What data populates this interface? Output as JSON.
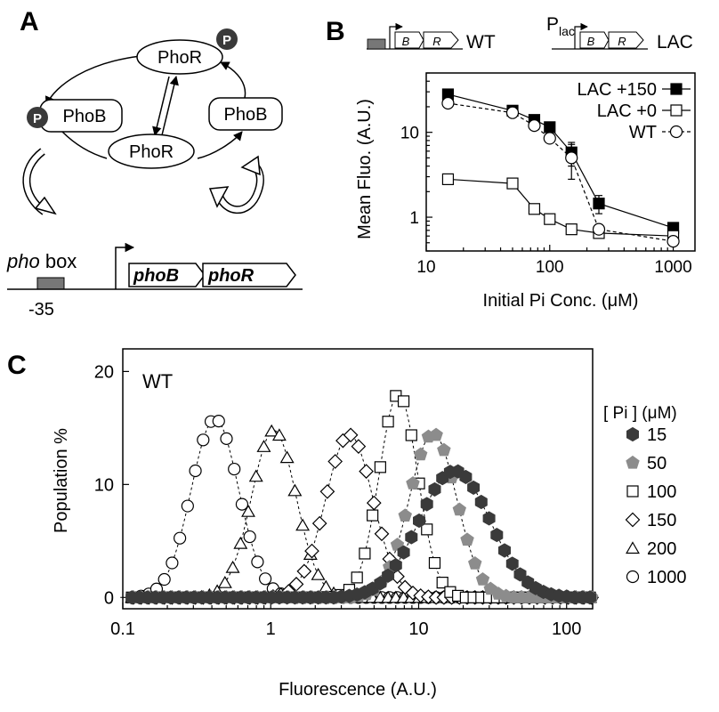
{
  "panel_a": {
    "letter": "A",
    "phor_label": "PhoR",
    "phob_label": "PhoB",
    "p_label": "P",
    "pho_italic": "pho",
    "box_label": " box",
    "minus35": "-35",
    "gene_b": "phoB",
    "gene_r": "phoR"
  },
  "panel_b_header": {
    "letter": "B",
    "b_label": "B",
    "r_label": "R",
    "wt_label": "WT",
    "lac_label": "LAC",
    "plac_p": "P",
    "plac_sub": "lac"
  },
  "panel_c_header": {
    "letter": "C",
    "inset_label": "WT",
    "legend_title": "[ Pi ] (μM)"
  },
  "colors": {
    "dark_hex": "#3a3a3a",
    "gray_pent": "#8c8c8c",
    "gene_box": "#777777"
  },
  "chart_data": [
    {
      "type": "line",
      "panel": "B",
      "xlabel": "Initial Pi Conc. (μM)",
      "ylabel": "Mean Fluo. (A.U.)",
      "xscale": "log",
      "yscale": "log",
      "xlim": [
        10,
        1500
      ],
      "ylim": [
        0.4,
        50
      ],
      "xticks": [
        10,
        100,
        1000
      ],
      "xtick_labels": [
        "10",
        "100",
        "1000"
      ],
      "yticks": [
        1,
        10
      ],
      "ytick_labels": [
        "1",
        "10"
      ],
      "legend_position": "top-right",
      "series": [
        {
          "name": "LAC +150",
          "marker": "filled-square",
          "line": "solid",
          "x": [
            15,
            50,
            75,
            100,
            150,
            250,
            1000
          ],
          "y": [
            28,
            18,
            14,
            11.5,
            5.8,
            1.45,
            0.75
          ],
          "err": [
            0,
            0,
            0,
            0,
            1.8,
            0.35,
            0.08
          ]
        },
        {
          "name": "LAC +0",
          "marker": "open-square",
          "line": "solid",
          "x": [
            15,
            50,
            75,
            100,
            150,
            250,
            1000
          ],
          "y": [
            2.8,
            2.5,
            1.25,
            0.95,
            0.72,
            0.65,
            0.6
          ],
          "err": [
            0,
            0,
            0,
            0,
            0,
            0,
            0
          ]
        },
        {
          "name": "WT",
          "marker": "open-circle",
          "line": "dashed",
          "x": [
            15,
            50,
            75,
            100,
            150,
            250,
            1000
          ],
          "y": [
            22,
            17,
            12,
            8.5,
            5,
            0.72,
            0.52
          ],
          "err": [
            0,
            0,
            0,
            0,
            2.2,
            0,
            0
          ]
        }
      ]
    },
    {
      "type": "scatter",
      "panel": "C",
      "xlabel": "Fluorescence (A.U.)",
      "ylabel": "Population %",
      "xscale": "log",
      "xlim": [
        0.1,
        150
      ],
      "ylim": [
        -1,
        22
      ],
      "xticks": [
        0.1,
        1,
        10,
        100
      ],
      "xtick_labels": [
        "0.1",
        "1",
        "10",
        "100"
      ],
      "yticks": [
        0,
        10,
        20
      ],
      "ytick_labels": [
        "0",
        "10",
        "20"
      ],
      "legend_position": "right",
      "series": [
        {
          "name": "15",
          "marker": "filled-hexagon",
          "peak_x": 17.5,
          "peak_y": 11.2,
          "sigma_log10": 0.24
        },
        {
          "name": "50",
          "marker": "gray-pentagon",
          "peak_x": 12.5,
          "peak_y": 14.5,
          "sigma_log10": 0.16
        },
        {
          "name": "100",
          "marker": "open-square",
          "peak_x": 7.3,
          "peak_y": 18.0,
          "sigma_log10": 0.13
        },
        {
          "name": "150",
          "marker": "open-diamond",
          "peak_x": 3.4,
          "peak_y": 14.4,
          "sigma_log10": 0.16
        },
        {
          "name": "200",
          "marker": "open-triangle",
          "peak_x": 1.05,
          "peak_y": 14.8,
          "sigma_log10": 0.15
        },
        {
          "name": "1000",
          "marker": "open-circle",
          "peak_x": 0.42,
          "peak_y": 15.8,
          "sigma_log10": 0.16
        }
      ]
    }
  ]
}
